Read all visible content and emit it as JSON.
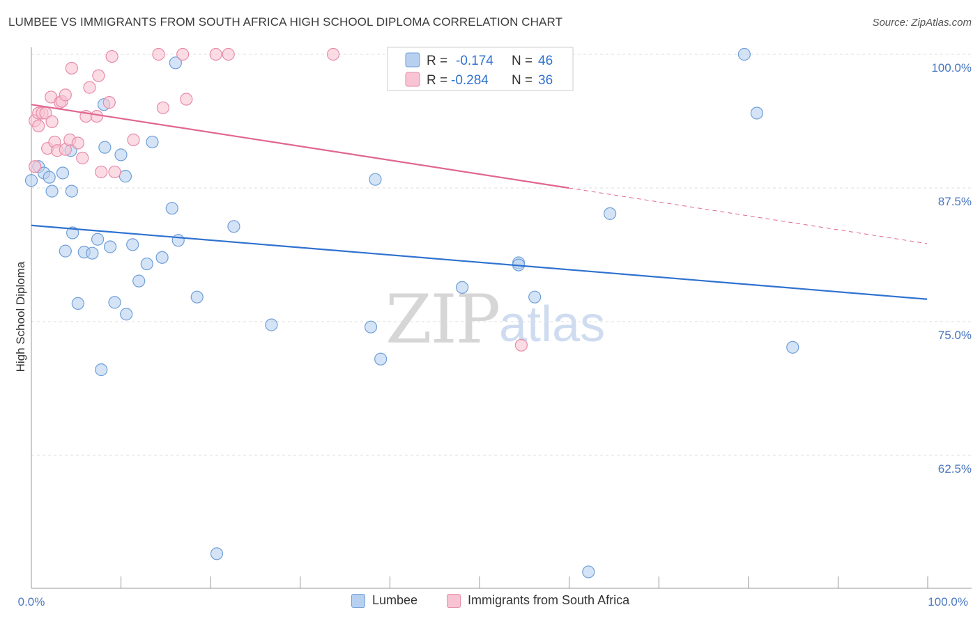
{
  "header": {
    "title": "LUMBEE VS IMMIGRANTS FROM SOUTH AFRICA HIGH SCHOOL DIPLOMA CORRELATION CHART",
    "source": "Source: ZipAtlas.com"
  },
  "watermark": {
    "zip": "ZIP",
    "atlas": "atlas"
  },
  "colors": {
    "blue_fill": "#b8d0f0",
    "blue_stroke": "#6f9fd8",
    "blue_line": "#2f72d0",
    "pink_fill": "#f8c4d4",
    "pink_stroke": "#e88aa8",
    "pink_line": "#e06690",
    "tick_label": "#4a78c0",
    "grid": "#dddddd"
  },
  "legend": {
    "rows": [
      {
        "r_label": "R =",
        "r_value": "-0.174",
        "n_label": "N =",
        "n_value": "46"
      },
      {
        "r_label": "R =",
        "r_value": "-0.284",
        "n_label": "N =",
        "n_value": "36"
      }
    ]
  },
  "chart_data": {
    "type": "scatter",
    "title": "LUMBEE VS IMMIGRANTS FROM SOUTH AFRICA HIGH SCHOOL DIPLOMA CORRELATION CHART",
    "xlabel": "",
    "ylabel": "High School Diploma",
    "xlim": [
      0,
      100
    ],
    "ylim": [
      52,
      101
    ],
    "x_tick_labels": [
      "0.0%",
      "100.0%"
    ],
    "y_ticks": [
      100,
      87.5,
      75,
      62.5
    ],
    "y_tick_labels": [
      "100.0%",
      "87.5%",
      "75.0%",
      "62.5%"
    ],
    "grid": true,
    "series": [
      {
        "name": "Lumbee",
        "R": -0.174,
        "N": 46,
        "trend": {
          "x": [
            0,
            100
          ],
          "y": [
            84.0,
            77.1
          ],
          "dashed_from": null
        },
        "points": [
          [
            0.0,
            88.2
          ],
          [
            0.8,
            89.5
          ],
          [
            1.4,
            88.9
          ],
          [
            2.0,
            88.5
          ],
          [
            2.3,
            87.2
          ],
          [
            4.4,
            91.0
          ],
          [
            3.5,
            88.9
          ],
          [
            4.5,
            87.2
          ],
          [
            8.1,
            95.3
          ],
          [
            8.2,
            91.3
          ],
          [
            10.0,
            90.6
          ],
          [
            10.5,
            88.6
          ],
          [
            13.5,
            91.8
          ],
          [
            16.1,
            99.2
          ],
          [
            4.6,
            83.3
          ],
          [
            7.4,
            82.7
          ],
          [
            3.8,
            81.6
          ],
          [
            5.9,
            81.5
          ],
          [
            6.8,
            81.4
          ],
          [
            8.8,
            82.0
          ],
          [
            11.3,
            82.2
          ],
          [
            15.7,
            85.6
          ],
          [
            16.4,
            82.6
          ],
          [
            22.6,
            83.9
          ],
          [
            12.9,
            80.4
          ],
          [
            14.6,
            81.0
          ],
          [
            12.0,
            78.8
          ],
          [
            5.2,
            76.7
          ],
          [
            9.3,
            76.8
          ],
          [
            10.6,
            75.7
          ],
          [
            18.5,
            77.3
          ],
          [
            26.8,
            74.7
          ],
          [
            37.9,
            74.5
          ],
          [
            7.8,
            70.5
          ],
          [
            38.4,
            88.3
          ],
          [
            48.1,
            78.2
          ],
          [
            54.4,
            80.5
          ],
          [
            54.4,
            80.3
          ],
          [
            56.2,
            77.3
          ],
          [
            39.0,
            71.5
          ],
          [
            79.6,
            100.0
          ],
          [
            81.0,
            94.5
          ],
          [
            64.6,
            85.1
          ],
          [
            85.0,
            72.6
          ],
          [
            20.7,
            53.3
          ],
          [
            62.2,
            51.6
          ]
        ]
      },
      {
        "name": "Immigrants from South Africa",
        "R": -0.284,
        "N": 36,
        "trend": {
          "x": [
            0,
            100
          ],
          "y": [
            95.3,
            82.3
          ],
          "dashed_from": 60
        },
        "points": [
          [
            0.4,
            89.5
          ],
          [
            0.4,
            93.8
          ],
          [
            0.8,
            93.3
          ],
          [
            0.8,
            94.5
          ],
          [
            1.2,
            94.5
          ],
          [
            1.6,
            94.5
          ],
          [
            1.8,
            91.2
          ],
          [
            2.2,
            96.0
          ],
          [
            2.3,
            93.7
          ],
          [
            2.6,
            91.8
          ],
          [
            2.9,
            91.0
          ],
          [
            3.2,
            95.5
          ],
          [
            3.4,
            95.6
          ],
          [
            3.8,
            96.2
          ],
          [
            3.8,
            91.1
          ],
          [
            4.3,
            92.0
          ],
          [
            4.5,
            98.7
          ],
          [
            5.2,
            91.7
          ],
          [
            5.7,
            90.3
          ],
          [
            6.1,
            94.2
          ],
          [
            6.5,
            96.9
          ],
          [
            7.3,
            94.2
          ],
          [
            7.5,
            98.0
          ],
          [
            7.8,
            89.0
          ],
          [
            8.7,
            95.5
          ],
          [
            9.3,
            89.0
          ],
          [
            9.0,
            99.8
          ],
          [
            11.4,
            92.0
          ],
          [
            14.2,
            100.0
          ],
          [
            14.7,
            95.0
          ],
          [
            16.9,
            100.0
          ],
          [
            17.3,
            95.8
          ],
          [
            20.6,
            100.0
          ],
          [
            22.0,
            100.0
          ],
          [
            33.7,
            100.0
          ],
          [
            54.7,
            72.8
          ]
        ]
      }
    ]
  }
}
